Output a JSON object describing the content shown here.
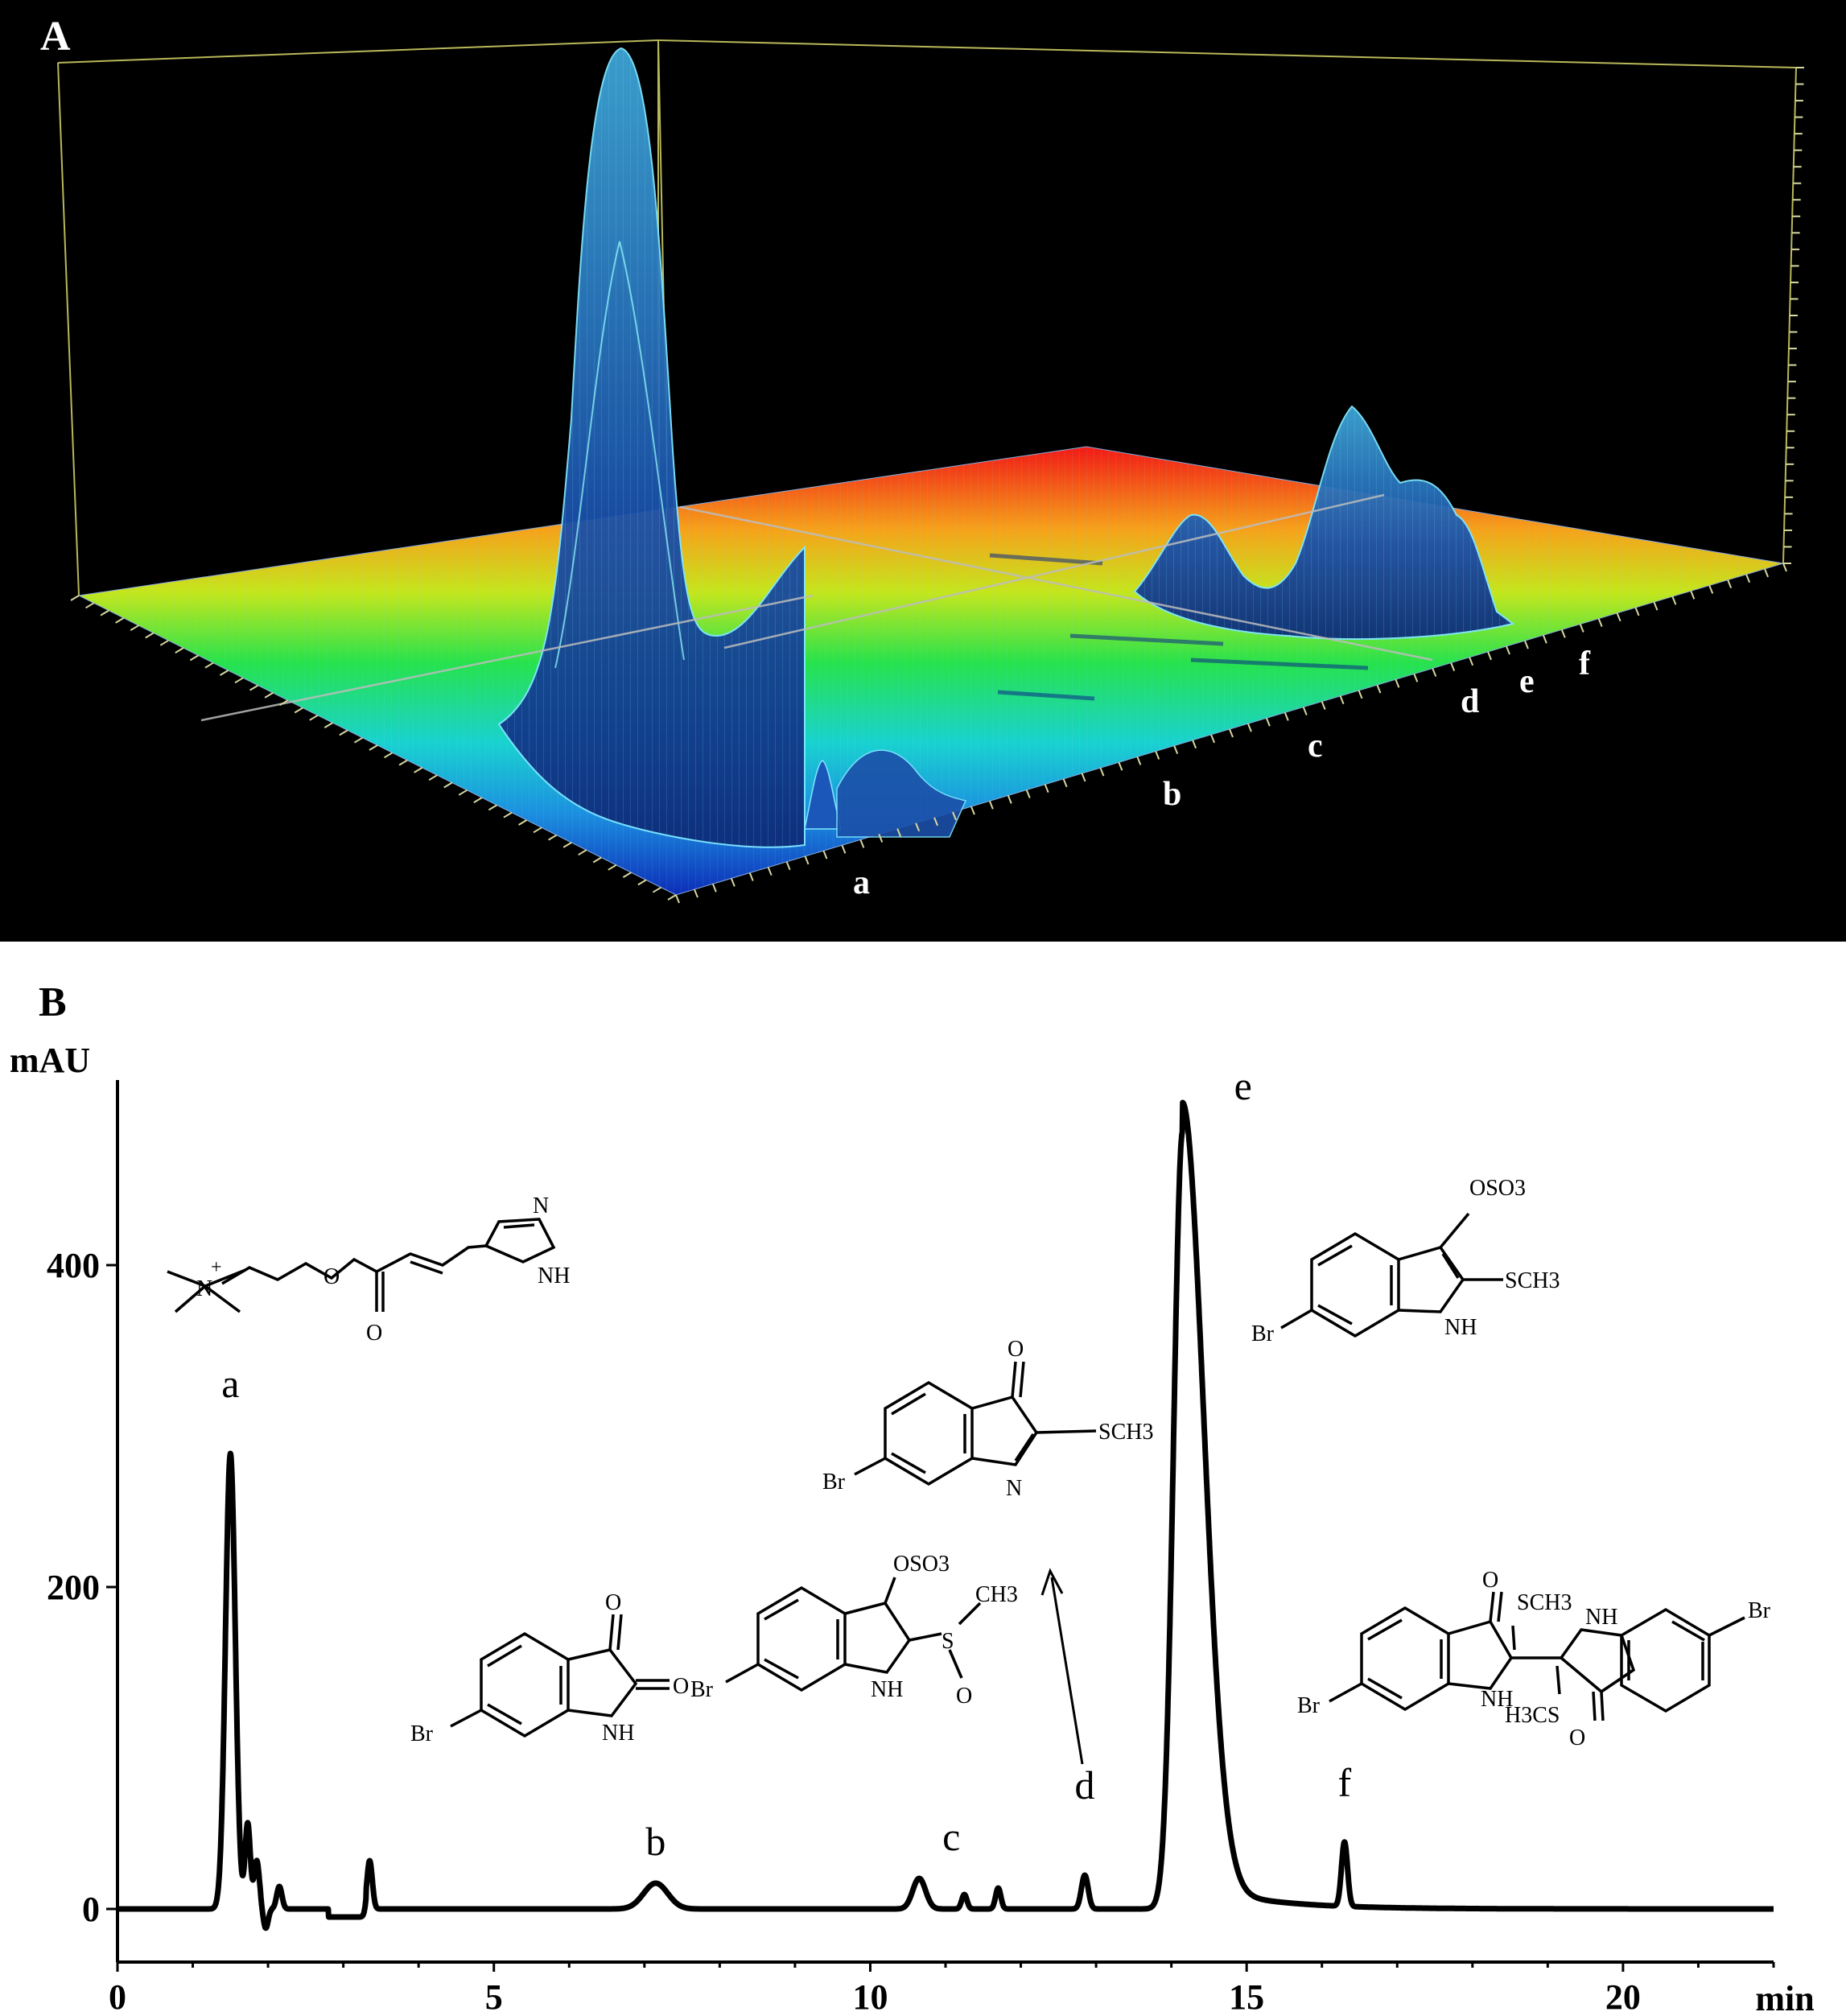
{
  "panels": {
    "a_label": "A",
    "b_label": "B"
  },
  "panel_a": {
    "peak_labels": [
      "a",
      "b",
      "c",
      "d",
      "e",
      "f"
    ]
  },
  "chart_data": {
    "type": "line",
    "xlabel": "min",
    "ylabel": "mAU",
    "xlim": [
      0,
      22
    ],
    "ylim": [
      -30,
      500
    ],
    "x_ticks": [
      0,
      5,
      10,
      15,
      20
    ],
    "y_ticks": [
      0,
      200,
      400
    ],
    "grid": false,
    "peaks": [
      {
        "label": "a",
        "x": 1.5,
        "y": 283,
        "annotation": "histamine ester (quaternary ammonium, imidazole)"
      },
      {
        "label": "b",
        "x": 7.15,
        "y": 16,
        "annotation": "6-bromoisatin"
      },
      {
        "label": "c",
        "x": 10.65,
        "y": 19,
        "annotation": "sulfonylated indoline"
      },
      {
        "label": "d",
        "x": 12.85,
        "y": 21,
        "annotation": "6-bromo-2-methylthio-3H-indol-3-one"
      },
      {
        "label": "e",
        "x": 14.15,
        "y": 483,
        "annotation": "tyrindoxyl sulfate"
      },
      {
        "label": "f",
        "x": 16.3,
        "y": 40,
        "annotation": "dimeric bromoindolinone"
      }
    ],
    "minor_peaks": [
      {
        "x": 1.73,
        "y": 53
      },
      {
        "x": 1.85,
        "y": 30
      },
      {
        "x": 2.15,
        "y": 14
      },
      {
        "x": 3.35,
        "y": 30
      },
      {
        "x": 11.25,
        "y": 9
      },
      {
        "x": 11.7,
        "y": 13
      }
    ],
    "structure_labels": {
      "a": {
        "charge": "+",
        "n": "N",
        "o1": "O",
        "o2": "O",
        "n2": "N",
        "nh": "NH"
      },
      "b": {
        "o1": "O",
        "o2": "O",
        "br": "Br",
        "nh": "NH"
      },
      "c": {
        "oso3": "OSO3",
        "ch3": "CH3",
        "s": "S",
        "o": "O",
        "br": "Br",
        "nh": "NH"
      },
      "d": {
        "o": "O",
        "sch3": "SCH3",
        "br": "Br",
        "n": "N"
      },
      "e": {
        "oso3": "OSO3",
        "sch3": "SCH3",
        "br": "Br",
        "nh": "NH"
      },
      "f": {
        "o1": "O",
        "sch3": "SCH3",
        "nh1": "NH",
        "br1": "Br",
        "br2": "Br",
        "nh2": "NH",
        "h3cs": "H3CS",
        "o2": "O"
      }
    }
  }
}
